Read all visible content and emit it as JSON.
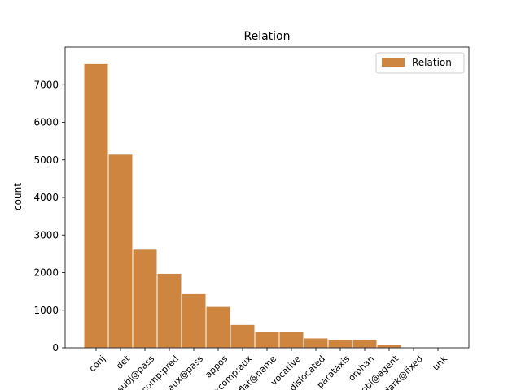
{
  "chart_data": {
    "type": "bar",
    "title": "Relation",
    "xlabel": "",
    "ylabel": "count",
    "ylim": [
      0,
      8000
    ],
    "yticks": [
      0,
      1000,
      2000,
      3000,
      4000,
      5000,
      6000,
      7000
    ],
    "grid": false,
    "legend_position": "top-right",
    "categories": [
      "conj",
      "det",
      "nsubj@pass",
      "xcomp:pred",
      "aux@pass",
      "appos",
      "xcomp:aux",
      "flat@name",
      "vocative",
      "dislocated",
      "parataxis",
      "orphan",
      "obl@agent",
      "dark@fixed",
      "unk"
    ],
    "series": [
      {
        "name": "Relation",
        "color": "#cd853f",
        "values": [
          7560,
          5150,
          2620,
          1980,
          1440,
          1100,
          620,
          440,
          440,
          260,
          220,
          220,
          90,
          10,
          5
        ]
      }
    ]
  }
}
